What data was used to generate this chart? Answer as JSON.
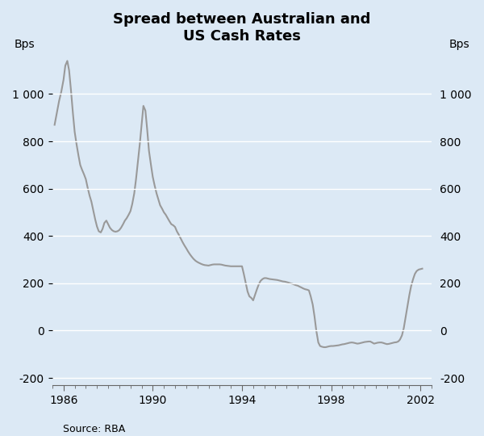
{
  "title": "Spread between Australian and\nUS Cash Rates",
  "ylabel_left": "Bps",
  "ylabel_right": "Bps",
  "source": "Source: RBA",
  "background_color": "#dce9f5",
  "line_color": "#999999",
  "line_width": 1.5,
  "yticks": [
    -200,
    0,
    200,
    400,
    600,
    800,
    1000
  ],
  "ytick_labels": [
    "-200",
    "0",
    "200",
    "400",
    "600",
    "800",
    "1 000"
  ],
  "ylim": [
    -230,
    1180
  ],
  "xticks": [
    1986,
    1990,
    1994,
    1998,
    2002
  ],
  "xlim": [
    1985.5,
    2002.5
  ],
  "dates": [
    1985.6,
    1985.7,
    1985.8,
    1985.9,
    1986.0,
    1986.08,
    1986.17,
    1986.25,
    1986.33,
    1986.42,
    1986.5,
    1986.58,
    1986.67,
    1986.75,
    1986.83,
    1986.92,
    1987.0,
    1987.08,
    1987.17,
    1987.25,
    1987.33,
    1987.42,
    1987.5,
    1987.58,
    1987.67,
    1987.75,
    1987.83,
    1987.92,
    1988.0,
    1988.08,
    1988.17,
    1988.25,
    1988.33,
    1988.42,
    1988.5,
    1988.58,
    1988.67,
    1988.75,
    1988.83,
    1988.92,
    1989.0,
    1989.08,
    1989.17,
    1989.25,
    1989.33,
    1989.42,
    1989.5,
    1989.58,
    1989.67,
    1989.75,
    1989.83,
    1989.92,
    1990.0,
    1990.08,
    1990.17,
    1990.25,
    1990.33,
    1990.42,
    1990.5,
    1990.58,
    1990.67,
    1990.75,
    1990.83,
    1990.92,
    1991.0,
    1991.08,
    1991.17,
    1991.25,
    1991.33,
    1991.42,
    1991.5,
    1991.58,
    1991.67,
    1991.75,
    1991.83,
    1991.92,
    1992.0,
    1992.08,
    1992.17,
    1992.25,
    1992.33,
    1992.42,
    1992.5,
    1992.58,
    1992.67,
    1992.75,
    1992.83,
    1992.92,
    1993.0,
    1993.08,
    1993.17,
    1993.25,
    1993.33,
    1993.42,
    1993.5,
    1993.58,
    1993.67,
    1993.75,
    1993.83,
    1993.92,
    1994.0,
    1994.08,
    1994.17,
    1994.25,
    1994.33,
    1994.42,
    1994.5,
    1994.58,
    1994.67,
    1994.75,
    1994.83,
    1994.92,
    1995.0,
    1995.08,
    1995.17,
    1995.25,
    1995.33,
    1995.42,
    1995.5,
    1995.58,
    1995.67,
    1995.75,
    1995.83,
    1995.92,
    1996.0,
    1996.08,
    1996.17,
    1996.25,
    1996.33,
    1996.42,
    1996.5,
    1996.58,
    1996.67,
    1996.75,
    1996.83,
    1996.92,
    1997.0,
    1997.08,
    1997.17,
    1997.25,
    1997.33,
    1997.42,
    1997.5,
    1997.58,
    1997.67,
    1997.75,
    1997.83,
    1997.92,
    1998.0,
    1998.08,
    1998.17,
    1998.25,
    1998.33,
    1998.42,
    1998.5,
    1998.58,
    1998.67,
    1998.75,
    1998.83,
    1998.92,
    1999.0,
    1999.08,
    1999.17,
    1999.25,
    1999.33,
    1999.42,
    1999.5,
    1999.58,
    1999.67,
    1999.75,
    1999.83,
    1999.92,
    2000.0,
    2000.08,
    2000.17,
    2000.25,
    2000.33,
    2000.42,
    2000.5,
    2000.58,
    2000.67,
    2000.75,
    2000.83,
    2000.92,
    2001.0,
    2001.08,
    2001.17,
    2001.25,
    2001.33,
    2001.42,
    2001.5,
    2001.58,
    2001.67,
    2001.75,
    2001.83,
    2001.92,
    2002.0,
    2002.08
  ],
  "values": [
    870,
    920,
    970,
    1010,
    1060,
    1120,
    1140,
    1100,
    1020,
    920,
    840,
    790,
    740,
    700,
    680,
    660,
    640,
    605,
    570,
    545,
    510,
    470,
    440,
    420,
    415,
    430,
    455,
    465,
    450,
    435,
    425,
    420,
    418,
    420,
    425,
    435,
    450,
    465,
    475,
    490,
    505,
    535,
    580,
    640,
    710,
    790,
    870,
    950,
    930,
    850,
    760,
    700,
    650,
    615,
    580,
    555,
    530,
    515,
    500,
    490,
    475,
    462,
    450,
    445,
    438,
    420,
    405,
    390,
    375,
    360,
    348,
    335,
    322,
    312,
    303,
    295,
    290,
    286,
    282,
    279,
    277,
    276,
    275,
    277,
    279,
    280,
    280,
    280,
    280,
    279,
    277,
    275,
    274,
    273,
    272,
    272,
    272,
    272,
    272,
    272,
    272,
    240,
    200,
    165,
    145,
    138,
    128,
    150,
    175,
    195,
    210,
    218,
    222,
    222,
    220,
    218,
    217,
    216,
    215,
    214,
    212,
    210,
    208,
    207,
    205,
    203,
    200,
    198,
    195,
    192,
    190,
    186,
    182,
    178,
    175,
    173,
    170,
    145,
    110,
    60,
    0,
    -50,
    -65,
    -68,
    -70,
    -70,
    -68,
    -66,
    -65,
    -65,
    -64,
    -63,
    -62,
    -60,
    -58,
    -57,
    -55,
    -53,
    -51,
    -50,
    -51,
    -53,
    -55,
    -54,
    -52,
    -50,
    -48,
    -47,
    -46,
    -46,
    -50,
    -55,
    -53,
    -51,
    -50,
    -50,
    -52,
    -55,
    -57,
    -56,
    -54,
    -52,
    -50,
    -49,
    -46,
    -38,
    -20,
    10,
    55,
    105,
    150,
    188,
    218,
    240,
    252,
    258,
    260,
    262
  ]
}
